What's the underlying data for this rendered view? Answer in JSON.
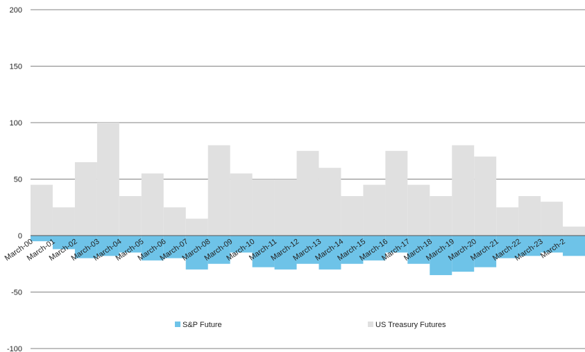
{
  "chart_data": {
    "type": "bar",
    "title": "",
    "xlabel": "",
    "ylabel": "",
    "ylim": [
      -100,
      200
    ],
    "yticks": [
      200,
      150,
      100,
      50,
      0,
      -50,
      -100
    ],
    "grid": true,
    "legend_position": "bottom-center",
    "colors": {
      "sp": "#6ec3e8",
      "ust": "#e0e0e0",
      "grid": "#808080"
    },
    "categories": [
      "March-00",
      "March-01",
      "March-02",
      "March-03",
      "March-04",
      "March-05",
      "March-06",
      "March-07",
      "March-08",
      "March-09",
      "March-10",
      "March-11",
      "March-12",
      "March-13",
      "March-14",
      "March-15",
      "March-16",
      "March-17",
      "March-18",
      "March-19",
      "March-20",
      "March-21",
      "March-22",
      "March-23",
      "March-24"
    ],
    "category_labels": [
      "March-00",
      "March-01",
      "March-02",
      "March-03",
      "March-04",
      "March-05",
      "March-06",
      "March-07",
      "March-08",
      "March-09",
      "March-10",
      "March-11",
      "March-12",
      "March-13",
      "March-14",
      "March-15",
      "March-16",
      "March-17",
      "March-18",
      "March-19",
      "March-20",
      "March-21",
      "March-22",
      "March-23",
      "March-2"
    ],
    "series": [
      {
        "name": "S&P Future",
        "values": [
          -5,
          -12,
          -20,
          -18,
          -15,
          -22,
          -20,
          -30,
          -25,
          -15,
          -28,
          -30,
          -25,
          -30,
          -25,
          -22,
          -15,
          -25,
          -35,
          -32,
          -28,
          -20,
          -18,
          -15,
          -18
        ]
      },
      {
        "name": "US Treasury Futures",
        "values": [
          45,
          25,
          65,
          100,
          35,
          55,
          25,
          15,
          80,
          55,
          50,
          50,
          75,
          60,
          35,
          45,
          75,
          45,
          35,
          80,
          70,
          25,
          35,
          30,
          8
        ]
      }
    ],
    "legend": [
      {
        "label": "S&P Future",
        "series": "sp"
      },
      {
        "label": "US Treasury Futures",
        "series": "ust"
      }
    ]
  }
}
